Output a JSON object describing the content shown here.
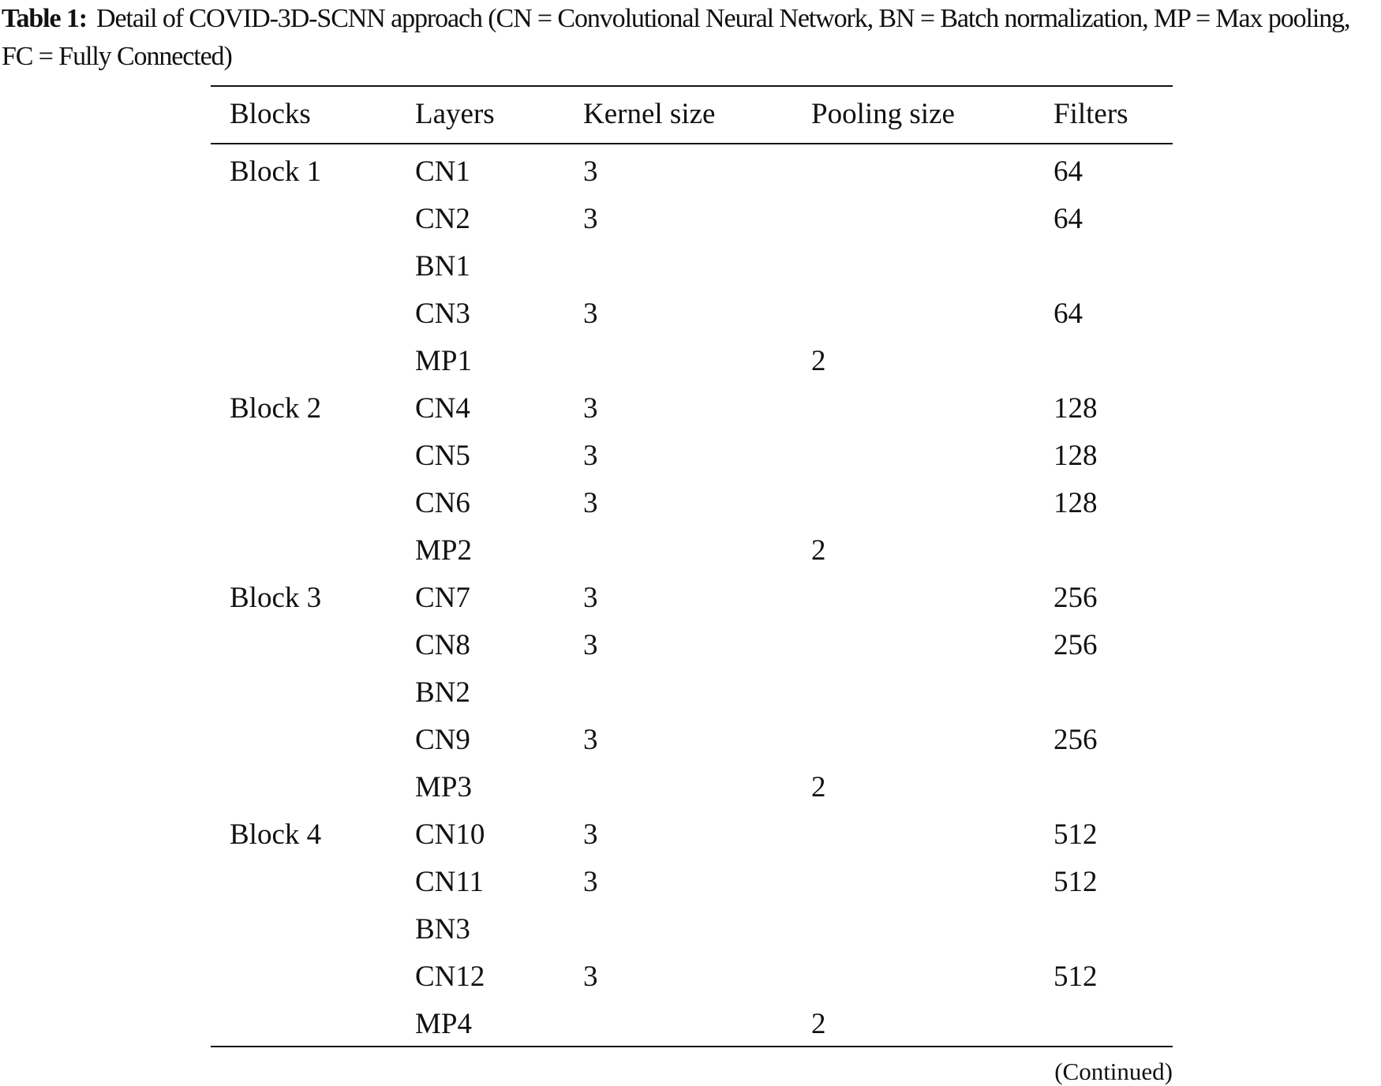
{
  "caption": {
    "label": "Table 1:",
    "text": "Detail of COVID-3D-SCNN approach (CN = Convolutional Neural Network, BN = Batch normalization, MP = Max pooling, FC = Fully Connected)"
  },
  "table": {
    "header": [
      "Blocks",
      "Layers",
      "Kernel size",
      "Pooling size",
      "Filters"
    ],
    "rows": [
      [
        "Block 1",
        "CN1",
        3,
        null,
        64
      ],
      [
        null,
        "CN2",
        3,
        null,
        64
      ],
      [
        null,
        "BN1",
        null,
        null,
        null
      ],
      [
        null,
        "CN3",
        3,
        null,
        64
      ],
      [
        null,
        "MP1",
        null,
        2,
        null
      ],
      [
        "Block 2",
        "CN4",
        3,
        null,
        128
      ],
      [
        null,
        "CN5",
        3,
        null,
        128
      ],
      [
        null,
        "CN6",
        3,
        null,
        128
      ],
      [
        null,
        "MP2",
        null,
        2,
        null
      ],
      [
        "Block 3",
        "CN7",
        3,
        null,
        256
      ],
      [
        null,
        "CN8",
        3,
        null,
        256
      ],
      [
        null,
        "BN2",
        null,
        null,
        null
      ],
      [
        null,
        "CN9",
        3,
        null,
        256
      ],
      [
        null,
        "MP3",
        null,
        2,
        null
      ],
      [
        "Block 4",
        "CN10",
        3,
        null,
        512
      ],
      [
        null,
        "CN11",
        3,
        null,
        512
      ],
      [
        null,
        "BN3",
        null,
        null,
        null
      ],
      [
        null,
        "CN12",
        3,
        null,
        512
      ],
      [
        null,
        "MP4",
        null,
        2,
        null
      ]
    ],
    "footnote": "(Continued)"
  }
}
